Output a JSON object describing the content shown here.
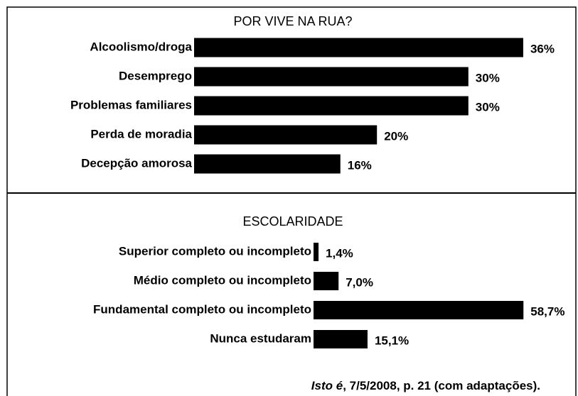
{
  "chart_data": [
    {
      "type": "bar",
      "title": "POR VIVE NA RUA?",
      "categories": [
        "Alcoolismo/droga",
        "Desemprego",
        "Problemas familiares",
        "Perda de moradia",
        "Decepção amorosa"
      ],
      "values": [
        36,
        30,
        30,
        20,
        16
      ],
      "value_labels": [
        "36%",
        "30%",
        "30%",
        "20%",
        "16%"
      ],
      "color": "#000000"
    },
    {
      "type": "bar",
      "title": "ESCOLARIDADE",
      "categories": [
        "Superior completo ou incompleto",
        "Médio completo ou incompleto",
        "Fundamental completo ou incompleto",
        "Nunca estudaram"
      ],
      "values": [
        1.4,
        7.0,
        58.7,
        15.1
      ],
      "value_labels": [
        "1,4%",
        "7,0%",
        "58,7%",
        "15,1%"
      ],
      "color": "#000000"
    }
  ],
  "source": {
    "publication": "Isto é",
    "details": ", 7/5/2008, p. 21 (com adaptações)."
  }
}
